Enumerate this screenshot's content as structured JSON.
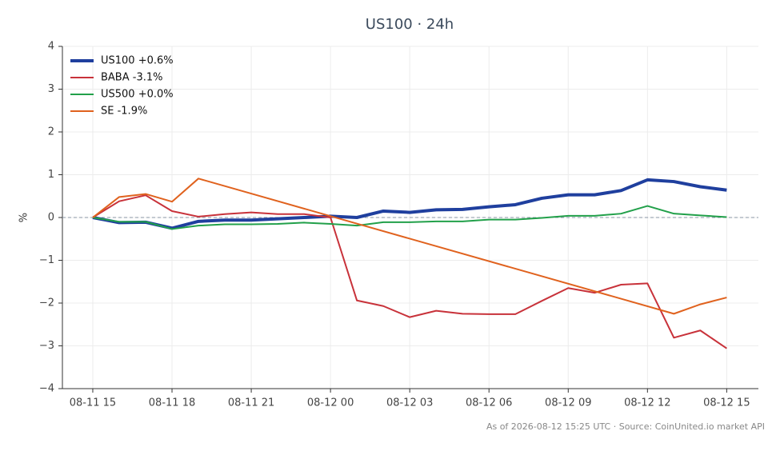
{
  "chart_data": {
    "type": "line",
    "title": "US100 · 24h",
    "ylabel": "%",
    "footer": "As of 2026-08-12 15:25 UTC · Source: CoinUnited.io market API",
    "x": [
      0,
      1,
      2,
      3,
      4,
      5,
      6,
      7,
      8,
      9,
      10,
      11,
      12,
      13,
      14,
      15,
      16,
      17,
      18,
      19,
      20,
      21,
      22,
      23,
      24
    ],
    "xlim": [
      -1.15,
      25.2
    ],
    "xticks": [
      {
        "value": 0,
        "label": "08-11 15"
      },
      {
        "value": 3,
        "label": "08-11 18"
      },
      {
        "value": 6,
        "label": "08-11 21"
      },
      {
        "value": 9,
        "label": "08-12 00"
      },
      {
        "value": 12,
        "label": "08-12 03"
      },
      {
        "value": 15,
        "label": "08-12 06"
      },
      {
        "value": 18,
        "label": "08-12 09"
      },
      {
        "value": 21,
        "label": "08-12 12"
      },
      {
        "value": 24,
        "label": "08-12 15"
      }
    ],
    "ylim": [
      -4,
      4
    ],
    "yticks": [
      {
        "value": -4,
        "label": "−4"
      },
      {
        "value": -3,
        "label": "−3"
      },
      {
        "value": -2,
        "label": "−2"
      },
      {
        "value": -1,
        "label": "−1"
      },
      0,
      1,
      2,
      3,
      4
    ],
    "grid": true,
    "zero_line": true,
    "legend": "upper left",
    "series": [
      {
        "name": "US100 +0.6%",
        "color": "#1f3f9e",
        "width": 4,
        "values": [
          0,
          -0.12,
          -0.11,
          -0.25,
          -0.09,
          -0.06,
          -0.06,
          -0.03,
          0.0,
          0.03,
          0.0,
          0.15,
          0.12,
          0.18,
          0.19,
          0.25,
          0.3,
          0.45,
          0.53,
          0.53,
          0.63,
          0.88,
          0.84,
          0.72,
          0.64
        ]
      },
      {
        "name": "BABA -3.1%",
        "color": "#c8323a",
        "width": 2,
        "values": [
          0,
          0.38,
          0.52,
          0.15,
          0.02,
          0.08,
          0.12,
          0.08,
          0.08,
          0.0,
          -1.94,
          -2.07,
          -2.33,
          -2.18,
          -2.25,
          -2.26,
          -2.26,
          -1.95,
          -1.65,
          -1.76,
          -1.57,
          -1.54,
          -2.81,
          -2.64,
          -3.06
        ]
      },
      {
        "name": "US500 +0.0%",
        "color": "#22a04a",
        "width": 2,
        "values": [
          0,
          -0.1,
          -0.1,
          -0.27,
          -0.19,
          -0.16,
          -0.16,
          -0.15,
          -0.12,
          -0.15,
          -0.19,
          -0.11,
          -0.11,
          -0.09,
          -0.09,
          -0.05,
          -0.05,
          -0.01,
          0.04,
          0.04,
          0.09,
          0.27,
          0.09,
          0.05,
          0.01
        ]
      },
      {
        "name": "SE -1.9%",
        "color": "#e0621e",
        "width": 2,
        "x": [
          0,
          1,
          2,
          3,
          4,
          22,
          23,
          24
        ],
        "values": [
          0,
          0.48,
          0.55,
          0.37,
          0.91,
          -2.25,
          -2.03,
          -1.87
        ]
      }
    ]
  }
}
